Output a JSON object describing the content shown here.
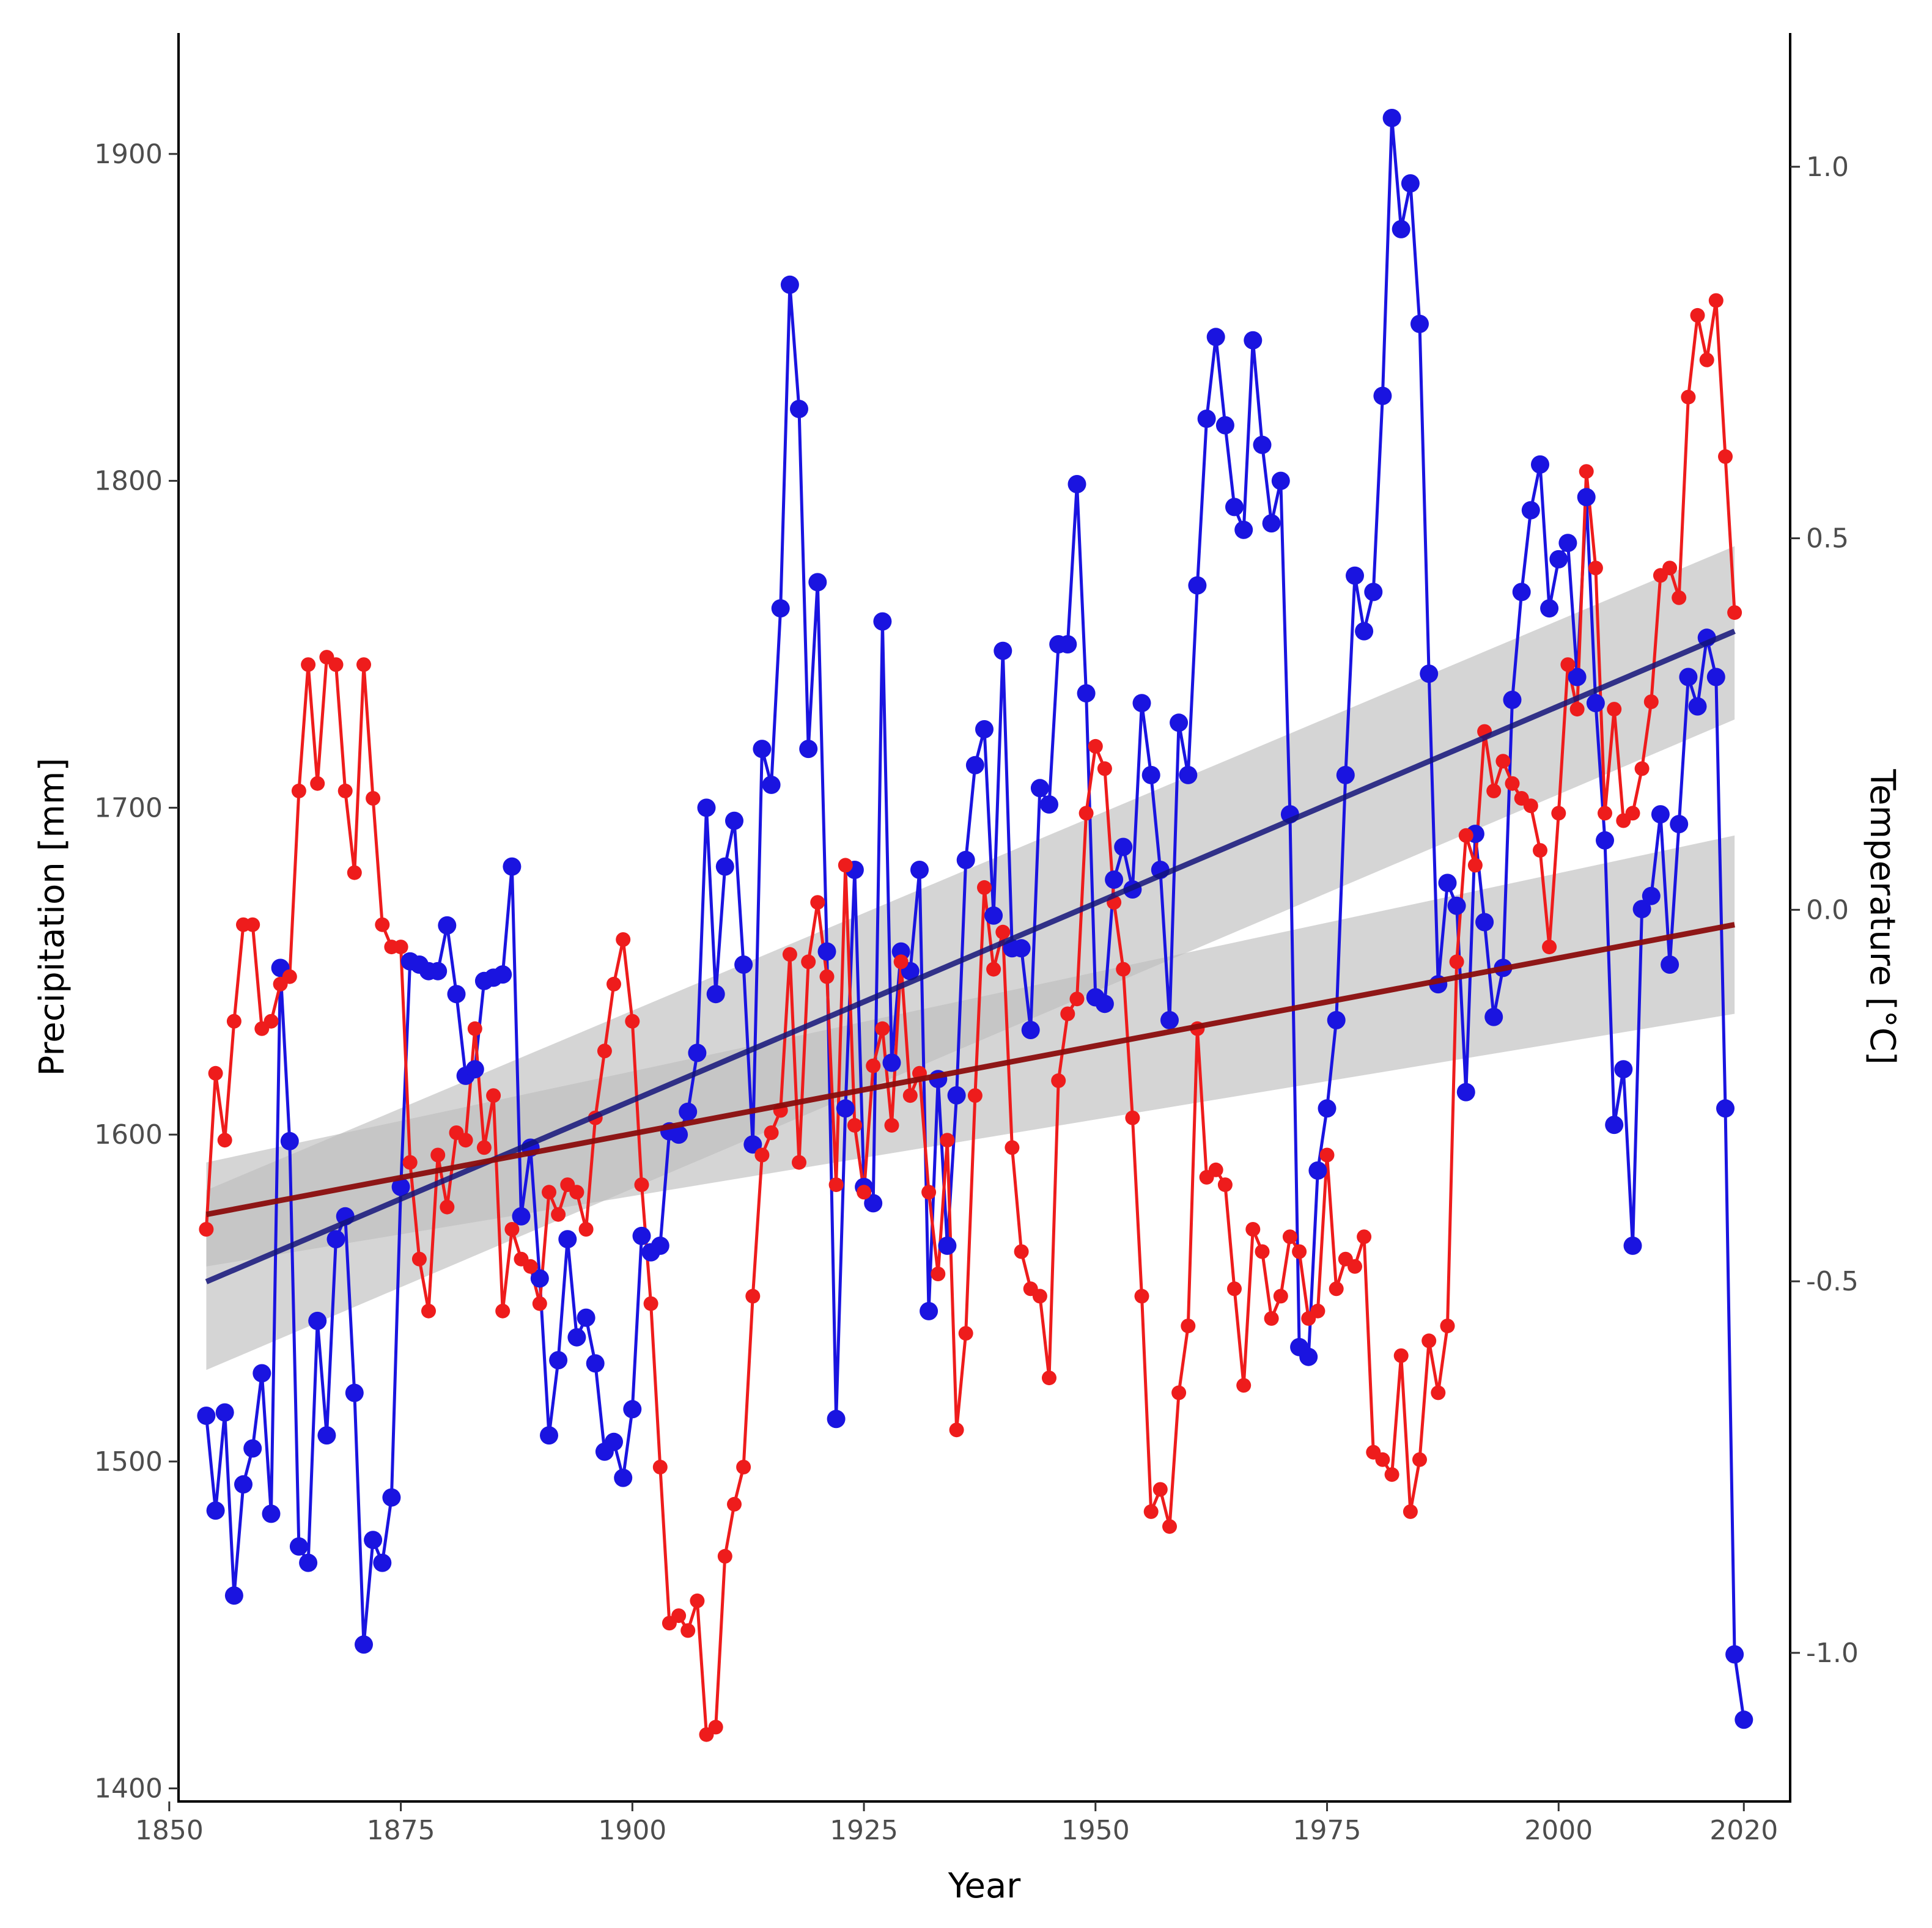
{
  "chart_data": {
    "type": "line",
    "xlabel": "Year",
    "ylabel_left": "Precipitation [mm]",
    "ylabel_right": "Temperature [°C]",
    "xlim": [
      1851,
      2025
    ],
    "ylim_left": [
      1396,
      1937
    ],
    "ylim_right": [
      -1.2,
      1.18
    ],
    "x_ticks": [
      1850,
      1875,
      1900,
      1925,
      1950,
      1975,
      2000,
      2020
    ],
    "y_ticks_left": [
      1400,
      1500,
      1600,
      1700,
      1800,
      1900
    ],
    "y_ticks_right": [
      -1.0,
      -0.5,
      0.0,
      0.5,
      1.0
    ],
    "y_tick_labels_right": [
      "-1.0",
      "-0.5",
      "0.0",
      "0.5",
      "1.0"
    ],
    "colors": {
      "precip": "#1a14e0",
      "temp": "#ee1c1c",
      "precip_trend": "#14147a",
      "temp_trend": "#8b0d0d",
      "ci_band": "#bfbfbf"
    },
    "series": [
      {
        "name": "Precipitation",
        "axis": "left",
        "x_start": 1854,
        "values": [
          1514,
          1485,
          1515,
          1459,
          1493,
          1504,
          1527,
          1484,
          1651,
          1598,
          1474,
          1469,
          1543,
          1508,
          1568,
          1575,
          1521,
          1444,
          1476,
          1469,
          1489,
          1584,
          1653,
          1652,
          1650,
          1650,
          1664,
          1643,
          1618,
          1620,
          1647,
          1648,
          1649,
          1682,
          1575,
          1596,
          1556,
          1508,
          1531,
          1568,
          1538,
          1544,
          1530,
          1503,
          1506,
          1495,
          1516,
          1569,
          1564,
          1566,
          1601,
          1600,
          1607,
          1625,
          1700,
          1643,
          1682,
          1696,
          1652,
          1597,
          1718,
          1707,
          1761,
          1860,
          1822,
          1718,
          1769,
          1656,
          1513,
          1608,
          1681,
          1584,
          1579,
          1757,
          1622,
          1656,
          1650,
          1681,
          1546,
          1617,
          1566,
          1612,
          1684,
          1713,
          1724,
          1667,
          1748,
          1657,
          1657,
          1632,
          1706,
          1701,
          1750,
          1750,
          1799,
          1735,
          1642,
          1640,
          1678,
          1688,
          1675,
          1732,
          1710,
          1681,
          1635,
          1726,
          1710,
          1768,
          1819,
          1844,
          1817,
          1792,
          1785,
          1843,
          1811,
          1787,
          1800,
          1698,
          1535,
          1532,
          1589,
          1608,
          1635,
          1710,
          1771,
          1754,
          1766,
          1826,
          1911,
          1877,
          1891,
          1848,
          1741,
          1646,
          1677,
          1670,
          1613,
          1692,
          1665,
          1636,
          1651,
          1733,
          1766,
          1791,
          1805,
          1761,
          1776,
          1781,
          1740,
          1795,
          1732,
          1690,
          1603,
          1620,
          1566,
          1669,
          1673,
          1698,
          1652,
          1695,
          1740,
          1731,
          1752,
          1740,
          1608,
          1441,
          1421
        ]
      },
      {
        "name": "Temperature",
        "axis": "right",
        "x_start": 1854,
        "values": [
          -0.43,
          -0.22,
          -0.31,
          -0.15,
          -0.02,
          -0.02,
          -0.16,
          -0.15,
          -0.1,
          -0.09,
          0.16,
          0.33,
          0.17,
          0.34,
          0.33,
          0.16,
          0.05,
          0.33,
          0.15,
          -0.02,
          -0.05,
          -0.05,
          -0.34,
          -0.47,
          -0.54,
          -0.33,
          -0.4,
          -0.3,
          -0.31,
          -0.16,
          -0.32,
          -0.25,
          -0.54,
          -0.43,
          -0.47,
          -0.48,
          -0.53,
          -0.38,
          -0.41,
          -0.37,
          -0.38,
          -0.43,
          -0.28,
          -0.19,
          -0.1,
          -0.04,
          -0.15,
          -0.37,
          -0.53,
          -0.75,
          -0.96,
          -0.95,
          -0.97,
          -0.93,
          -1.11,
          -1.1,
          -0.87,
          -0.8,
          -0.75,
          -0.52,
          -0.33,
          -0.3,
          -0.27,
          -0.06,
          -0.34,
          -0.07,
          0.01,
          -0.09,
          -0.37,
          0.06,
          -0.29,
          -0.38,
          -0.21,
          -0.16,
          -0.29,
          -0.07,
          -0.25,
          -0.22,
          -0.38,
          -0.49,
          -0.31,
          -0.7,
          -0.57,
          -0.25,
          0.03,
          -0.08,
          -0.03,
          -0.32,
          -0.46,
          -0.51,
          -0.52,
          -0.63,
          -0.23,
          -0.14,
          -0.12,
          0.13,
          0.22,
          0.19,
          0.01,
          -0.08,
          -0.28,
          -0.52,
          -0.81,
          -0.78,
          -0.83,
          -0.65,
          -0.56,
          -0.16,
          -0.36,
          -0.35,
          -0.37,
          -0.51,
          -0.64,
          -0.43,
          -0.46,
          -0.55,
          -0.52,
          -0.44,
          -0.46,
          -0.55,
          -0.54,
          -0.33,
          -0.51,
          -0.47,
          -0.48,
          -0.44,
          -0.73,
          -0.74,
          -0.76,
          -0.6,
          -0.81,
          -0.74,
          -0.58,
          -0.65,
          -0.56,
          -0.07,
          0.1,
          0.06,
          0.24,
          0.16,
          0.2,
          0.17,
          0.15,
          0.14,
          0.08,
          -0.05,
          0.13,
          0.33,
          0.27,
          0.59,
          0.46,
          0.13,
          0.27,
          0.12,
          0.13,
          0.19,
          0.28,
          0.45,
          0.46,
          0.42,
          0.69,
          0.8,
          0.74,
          0.82,
          0.61,
          0.4
        ]
      }
    ],
    "trends": [
      {
        "name": "Precipitation trend",
        "axis": "left",
        "x": [
          1854,
          2019
        ],
        "y": [
          1555,
          1754
        ],
        "ci_low": [
          1528,
          1727
        ],
        "ci_high": [
          1583,
          1780
        ]
      },
      {
        "name": "Temperature trend",
        "axis": "right",
        "x": [
          1854,
          2019
        ],
        "y": [
          -0.41,
          -0.02
        ],
        "ci_low": [
          -0.48,
          -0.14
        ],
        "ci_high": [
          -0.34,
          0.1
        ]
      }
    ]
  }
}
